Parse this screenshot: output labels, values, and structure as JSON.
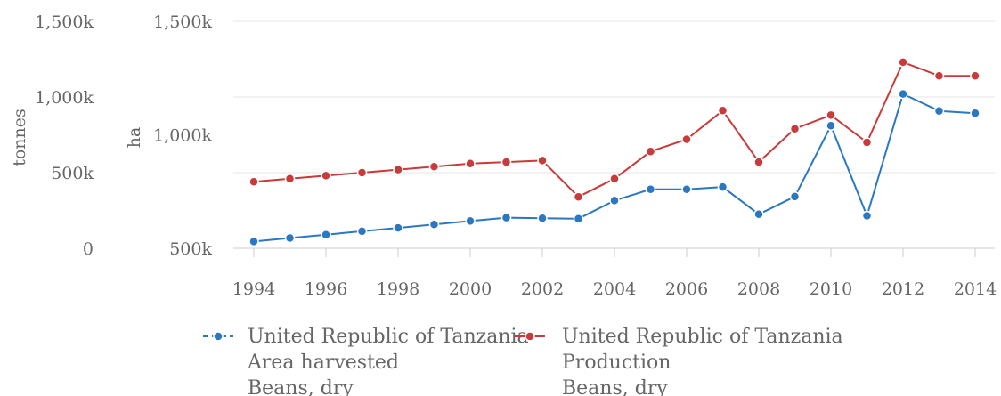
{
  "chart_data": {
    "type": "line",
    "x": [
      1994,
      1995,
      1996,
      1997,
      1998,
      1999,
      2000,
      2001,
      2002,
      2003,
      2004,
      2005,
      2006,
      2007,
      2008,
      2009,
      2010,
      2011,
      2012,
      2013,
      2014
    ],
    "x_tick_labels": [
      "1994",
      "1996",
      "1998",
      "2000",
      "2002",
      "2004",
      "2006",
      "2008",
      "2010",
      "2012",
      "2014"
    ],
    "y_axes": [
      {
        "id": "tonnes",
        "label": "tonnes",
        "ticks": [
          "0",
          "500k",
          "1,000k",
          "1,500k"
        ],
        "ylim": [
          0,
          1500000
        ]
      },
      {
        "id": "ha",
        "label": "ha",
        "ticks": [
          "500k",
          "1,000k",
          "1,500k"
        ],
        "ylim": [
          500000,
          1500000
        ]
      }
    ],
    "series": [
      {
        "name": "United Republic of Tanzania Area harvested Beans, dry",
        "legend_lines": [
          "United Republic of Tanzania",
          "Area harvested",
          "Beans, dry"
        ],
        "axis": "ha",
        "color": "#2a77c2",
        "dashed_legend": true,
        "values": [
          530000,
          545000,
          560000,
          575000,
          590000,
          605000,
          620000,
          635000,
          632000,
          630000,
          710000,
          760000,
          760000,
          770000,
          650000,
          728000,
          1040000,
          643000,
          1180000,
          1105000,
          1095000
        ]
      },
      {
        "name": "United Republic of Tanzania Production Beans, dry",
        "legend_lines": [
          "United Republic of Tanzania",
          "Production",
          "Beans, dry"
        ],
        "axis": "tonnes",
        "color": "#c93a3a",
        "dashed_legend": false,
        "values": [
          440000,
          460000,
          480000,
          500000,
          520000,
          540000,
          560000,
          570000,
          580000,
          340000,
          460000,
          640000,
          720000,
          910000,
          570000,
          790000,
          880000,
          700000,
          1230000,
          1140000,
          1140000
        ]
      }
    ],
    "grid": true,
    "legend_position": "bottom"
  }
}
